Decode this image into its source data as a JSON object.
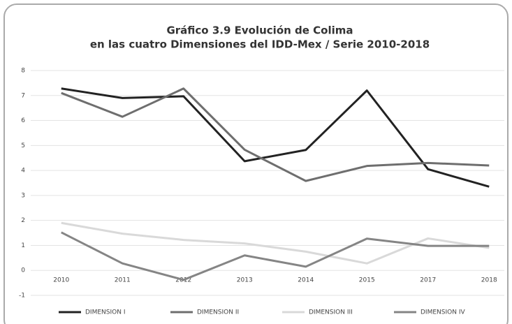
{
  "chart_data": {
    "type": "line",
    "title": [
      "Gráfico 3.9 Evolución de Colima",
      "en las cuatro Dimensiones del IDD-Mex / Serie 2010-2018"
    ],
    "categories": [
      "2010",
      "2011",
      "2012",
      "2013",
      "2014",
      "2015",
      "2017",
      "2018"
    ],
    "series": [
      {
        "name": "DIMENSION I",
        "color": "#222222",
        "values": [
          7.28,
          6.9,
          6.97,
          4.37,
          4.82,
          7.2,
          4.05,
          3.35
        ]
      },
      {
        "name": "DIMENSION II",
        "color": "#6e6e6e",
        "values": [
          7.1,
          6.15,
          7.28,
          4.83,
          3.58,
          4.18,
          4.3,
          4.2
        ]
      },
      {
        "name": "DIMENSION III",
        "color": "#d9d9d9",
        "values": [
          1.9,
          1.47,
          1.22,
          1.08,
          0.75,
          0.28,
          1.28,
          0.9
        ]
      },
      {
        "name": "DIMENSION IV",
        "color": "#858585",
        "values": [
          1.52,
          0.28,
          -0.38,
          0.6,
          0.15,
          1.27,
          0.98,
          0.98
        ]
      }
    ],
    "ylim": [
      -1,
      8
    ],
    "yticks": [
      -1,
      0,
      1,
      2,
      3,
      4,
      5,
      6,
      7,
      8
    ],
    "grid": true,
    "legend": "bottom"
  }
}
